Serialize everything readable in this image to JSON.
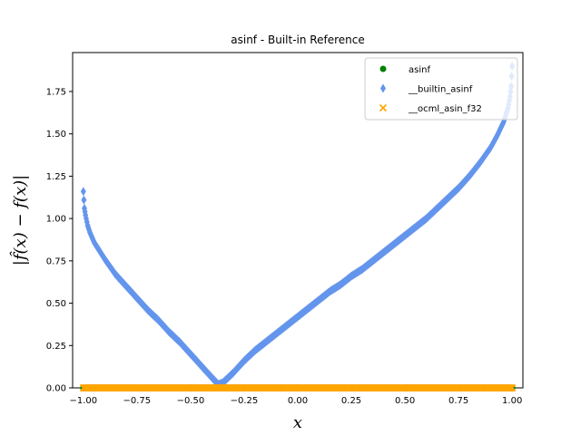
{
  "chart_data": {
    "type": "scatter",
    "title": "asinf - Built-in Reference",
    "xlabel": "x",
    "ylabel": "|f̂(x) − f(x)|",
    "xlim": [
      -1.05,
      1.05
    ],
    "ylim": [
      0.0,
      1.98
    ],
    "xticks": [
      -1.0,
      -0.75,
      -0.5,
      -0.25,
      0.0,
      0.25,
      0.5,
      0.75,
      1.0
    ],
    "xtick_labels": [
      "−1.00",
      "−0.75",
      "−0.50",
      "−0.25",
      "0.00",
      "0.25",
      "0.50",
      "0.75",
      "1.00"
    ],
    "yticks": [
      0.0,
      0.25,
      0.5,
      0.75,
      1.0,
      1.25,
      1.5,
      1.75
    ],
    "ytick_labels": [
      "0.00",
      "0.25",
      "0.50",
      "0.75",
      "1.00",
      "1.25",
      "1.50",
      "1.75"
    ],
    "grid": false,
    "legend_position": "top-right",
    "series": [
      {
        "name": "asinf",
        "marker": "circle",
        "color": "#008000",
        "points": [
          [
            -1.0,
            0.0
          ],
          [
            -0.5,
            0.0
          ],
          [
            0.0,
            0.0
          ],
          [
            0.5,
            0.0
          ],
          [
            1.0,
            0.0
          ]
        ]
      },
      {
        "name": "__builtin_asinf",
        "marker": "diamond",
        "color": "#6495ed",
        "points": [
          [
            -1.0,
            1.16
          ],
          [
            -0.995,
            1.06
          ],
          [
            -0.99,
            1.02
          ],
          [
            -0.98,
            0.96
          ],
          [
            -0.97,
            0.92
          ],
          [
            -0.95,
            0.86
          ],
          [
            -0.9,
            0.76
          ],
          [
            -0.85,
            0.67
          ],
          [
            -0.8,
            0.6
          ],
          [
            -0.75,
            0.53
          ],
          [
            -0.7,
            0.46
          ],
          [
            -0.65,
            0.4
          ],
          [
            -0.6,
            0.33
          ],
          [
            -0.55,
            0.27
          ],
          [
            -0.5,
            0.2
          ],
          [
            -0.45,
            0.13
          ],
          [
            -0.4,
            0.06
          ],
          [
            -0.37,
            0.02
          ],
          [
            -0.35,
            0.03
          ],
          [
            -0.3,
            0.09
          ],
          [
            -0.25,
            0.16
          ],
          [
            -0.2,
            0.22
          ],
          [
            -0.15,
            0.27
          ],
          [
            -0.1,
            0.32
          ],
          [
            -0.05,
            0.37
          ],
          [
            0.0,
            0.42
          ],
          [
            0.05,
            0.47
          ],
          [
            0.1,
            0.52
          ],
          [
            0.15,
            0.57
          ],
          [
            0.2,
            0.61
          ],
          [
            0.25,
            0.66
          ],
          [
            0.3,
            0.7
          ],
          [
            0.35,
            0.75
          ],
          [
            0.4,
            0.8
          ],
          [
            0.45,
            0.85
          ],
          [
            0.5,
            0.9
          ],
          [
            0.55,
            0.95
          ],
          [
            0.6,
            1.0
          ],
          [
            0.65,
            1.06
          ],
          [
            0.7,
            1.12
          ],
          [
            0.75,
            1.18
          ],
          [
            0.8,
            1.25
          ],
          [
            0.85,
            1.33
          ],
          [
            0.9,
            1.42
          ],
          [
            0.93,
            1.49
          ],
          [
            0.96,
            1.57
          ],
          [
            0.98,
            1.65
          ],
          [
            0.99,
            1.72
          ],
          [
            0.995,
            1.78
          ],
          [
            1.0,
            1.9
          ]
        ]
      },
      {
        "name": "__ocml_asin_f32",
        "marker": "x",
        "color": "#ffa500",
        "points": [
          [
            -1.0,
            0.0
          ],
          [
            -0.5,
            0.0
          ],
          [
            0.0,
            0.0
          ],
          [
            0.5,
            0.0
          ],
          [
            1.0,
            0.0
          ]
        ]
      }
    ]
  }
}
